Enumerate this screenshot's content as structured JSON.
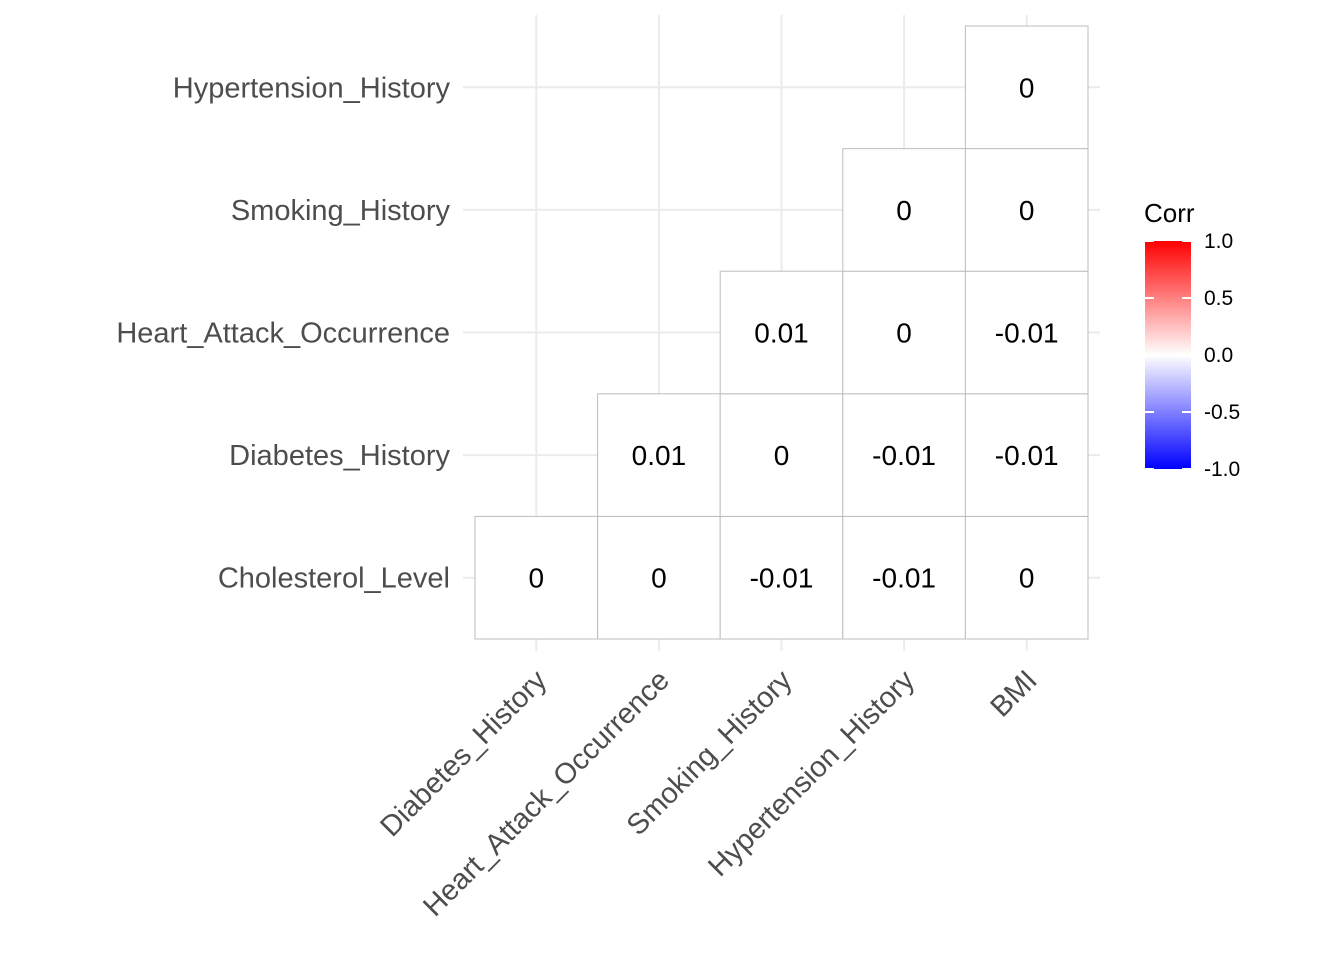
{
  "chart_data": {
    "type": "heatmap",
    "x_categories": [
      "Diabetes_History",
      "Heart_Attack_Occurrence",
      "Smoking_History",
      "Hypertension_History",
      "BMI"
    ],
    "y_categories": [
      "Cholesterol_Level",
      "Diabetes_History",
      "Heart_Attack_Occurrence",
      "Smoking_History",
      "Hypertension_History"
    ],
    "cells": [
      {
        "x": "Diabetes_History",
        "y": "Cholesterol_Level",
        "value": 0,
        "label": "0"
      },
      {
        "x": "Heart_Attack_Occurrence",
        "y": "Cholesterol_Level",
        "value": 0,
        "label": "0"
      },
      {
        "x": "Smoking_History",
        "y": "Cholesterol_Level",
        "value": -0.01,
        "label": "-0.01"
      },
      {
        "x": "Hypertension_History",
        "y": "Cholesterol_Level",
        "value": -0.01,
        "label": "-0.01"
      },
      {
        "x": "BMI",
        "y": "Cholesterol_Level",
        "value": 0,
        "label": "0"
      },
      {
        "x": "Heart_Attack_Occurrence",
        "y": "Diabetes_History",
        "value": 0.01,
        "label": "0.01"
      },
      {
        "x": "Smoking_History",
        "y": "Diabetes_History",
        "value": 0,
        "label": "0"
      },
      {
        "x": "Hypertension_History",
        "y": "Diabetes_History",
        "value": -0.01,
        "label": "-0.01"
      },
      {
        "x": "BMI",
        "y": "Diabetes_History",
        "value": -0.01,
        "label": "-0.01"
      },
      {
        "x": "Smoking_History",
        "y": "Heart_Attack_Occurrence",
        "value": 0.01,
        "label": "0.01"
      },
      {
        "x": "Hypertension_History",
        "y": "Heart_Attack_Occurrence",
        "value": 0,
        "label": "0"
      },
      {
        "x": "BMI",
        "y": "Heart_Attack_Occurrence",
        "value": -0.01,
        "label": "-0.01"
      },
      {
        "x": "Hypertension_History",
        "y": "Smoking_History",
        "value": 0,
        "label": "0"
      },
      {
        "x": "BMI",
        "y": "Smoking_History",
        "value": 0,
        "label": "0"
      },
      {
        "x": "BMI",
        "y": "Hypertension_History",
        "value": 0,
        "label": "0"
      }
    ],
    "legend": {
      "title": "Corr",
      "placement": "right",
      "range": [
        -1,
        1
      ],
      "ticks": [
        {
          "value": 1,
          "label": "1.0"
        },
        {
          "value": 0.5,
          "label": "0.5"
        },
        {
          "value": 0,
          "label": "0.0"
        },
        {
          "value": -0.5,
          "label": "-0.5"
        },
        {
          "value": -1,
          "label": "-1.0"
        }
      ],
      "colors": {
        "low": "#0000ff",
        "mid": "#ffffff",
        "high": "#ff0000"
      }
    },
    "grid": true,
    "title": "",
    "xlabel": "",
    "ylabel": ""
  }
}
